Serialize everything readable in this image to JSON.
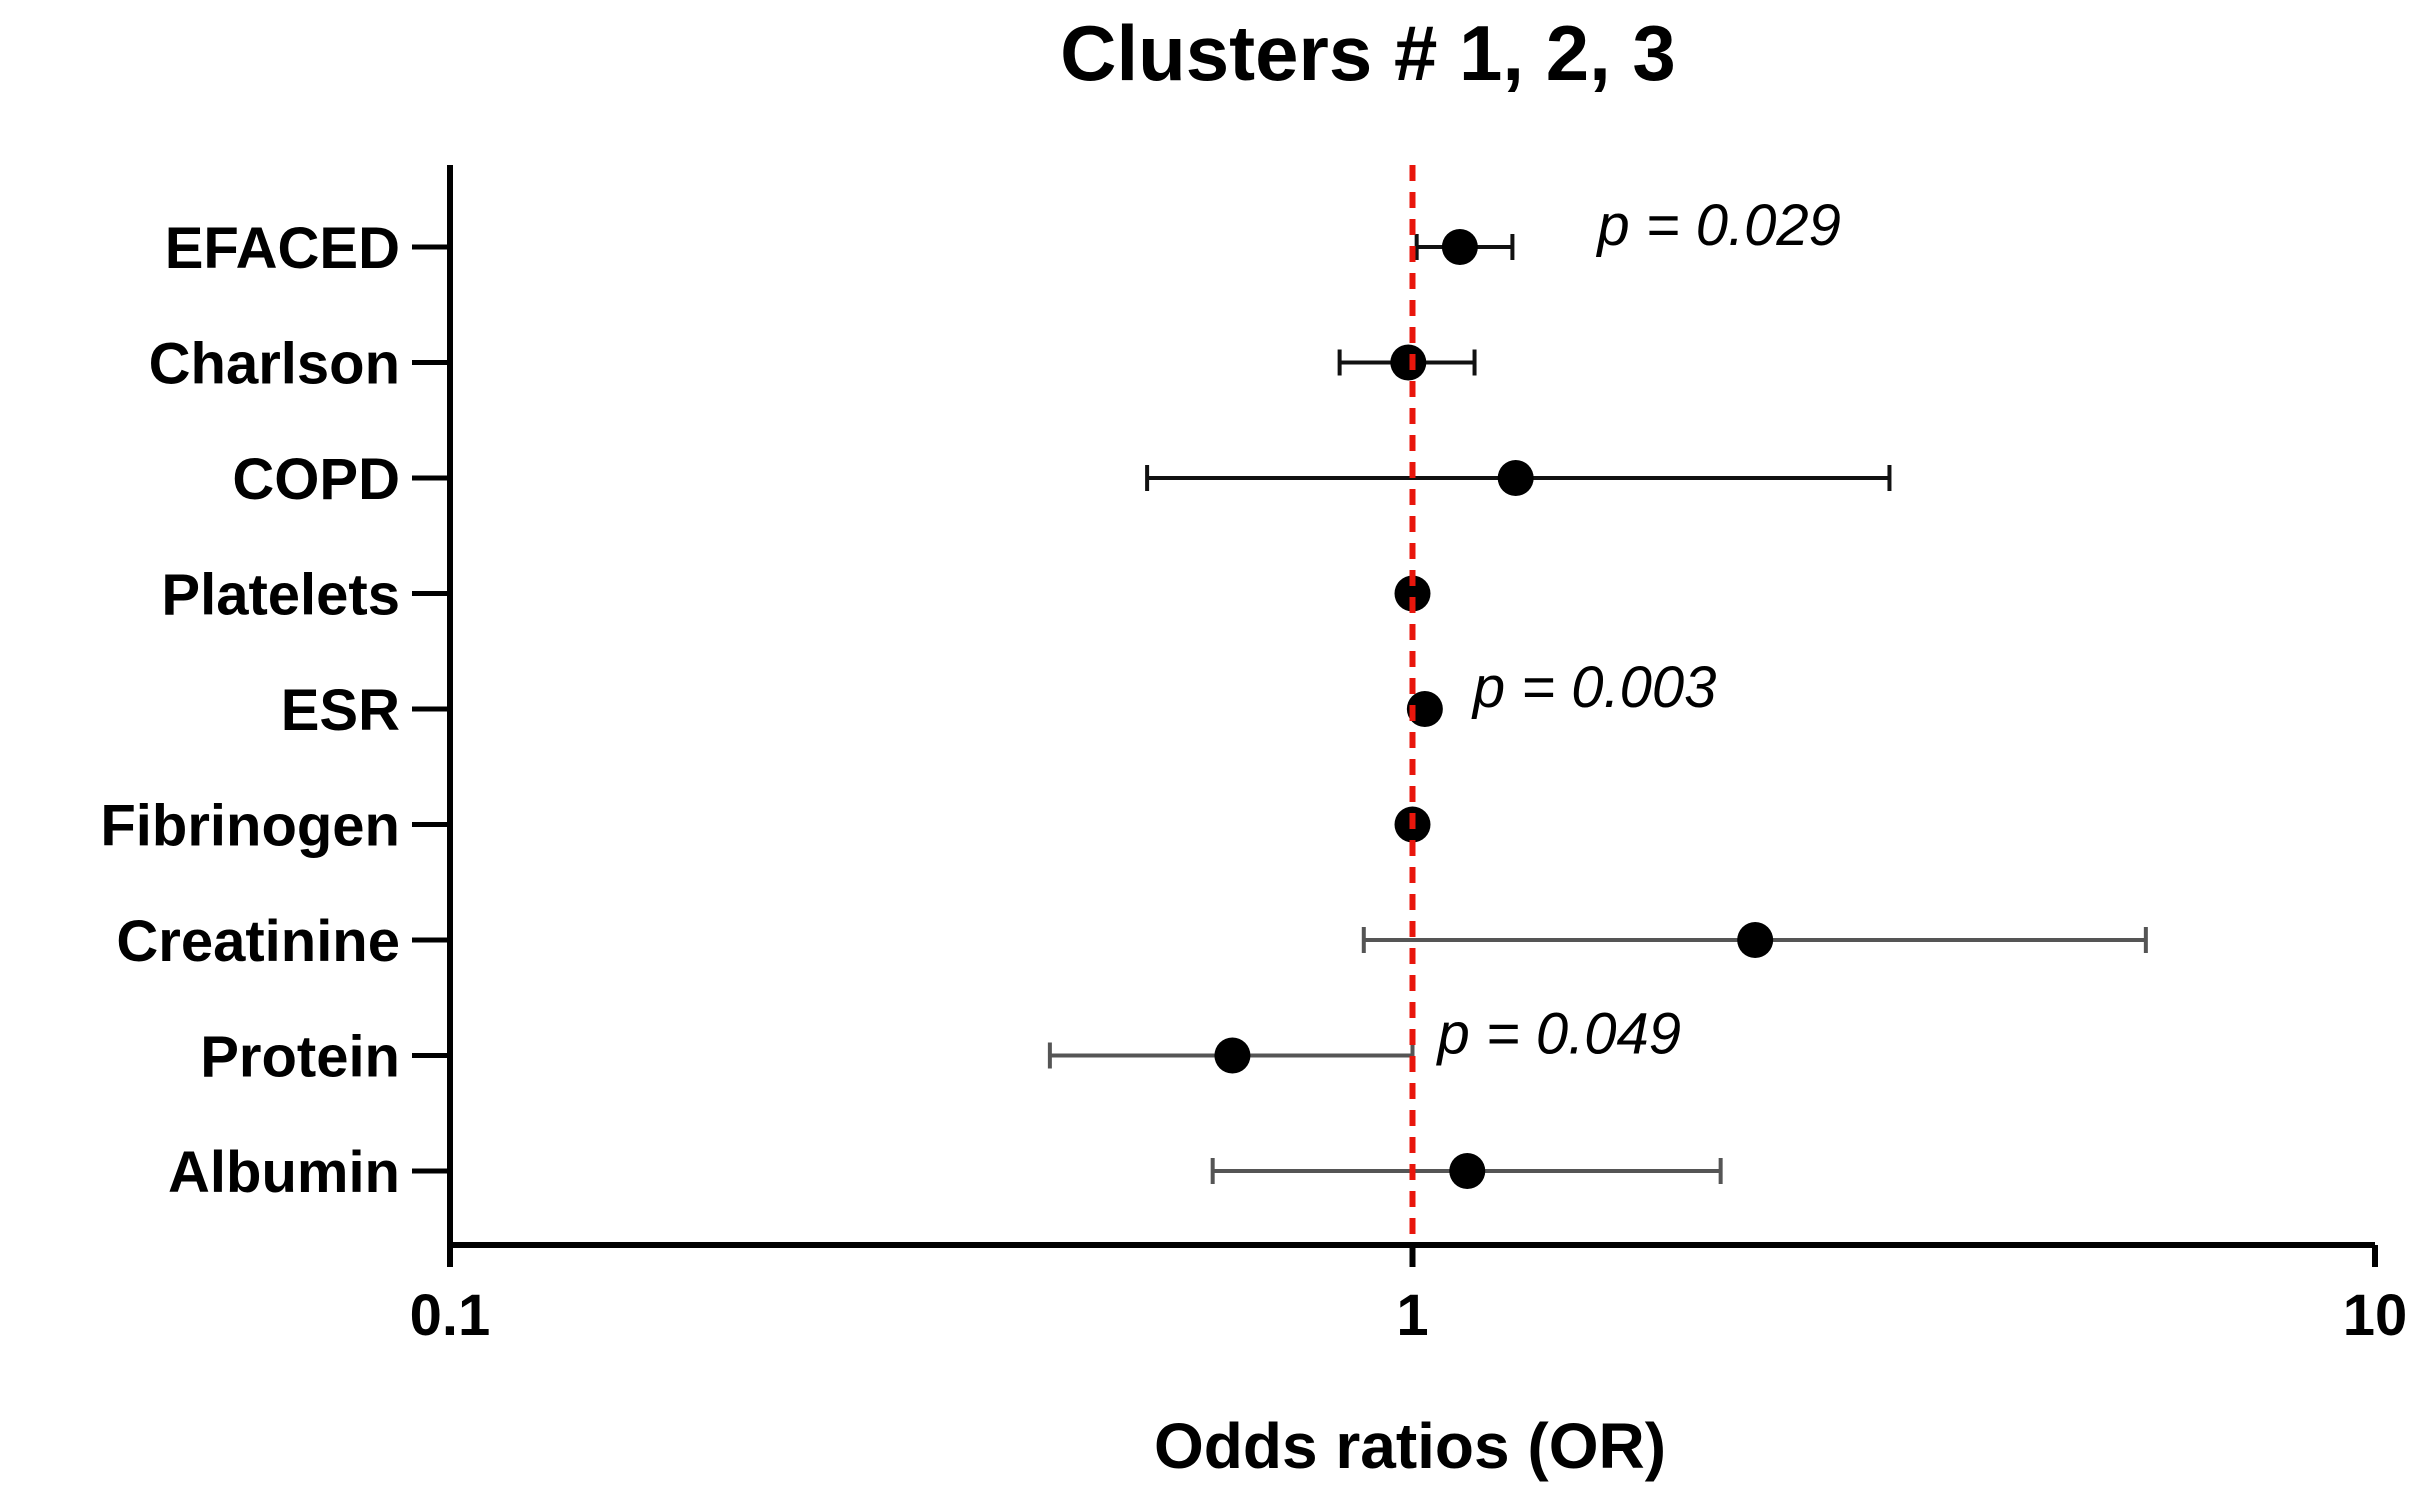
{
  "chart_data": {
    "type": "forest",
    "title": "Clusters # 1, 2, 3",
    "xlabel": "Odds ratios (OR)",
    "ylabel": "",
    "xscale": "log",
    "xlim": [
      0.1,
      10
    ],
    "xticks": [
      {
        "value": 0.1,
        "label": "0.1"
      },
      {
        "value": 1,
        "label": "1"
      },
      {
        "value": 10,
        "label": "10"
      }
    ],
    "reference_line": {
      "value": 1,
      "style": "dashed",
      "color": "#e8160c"
    },
    "rows": [
      {
        "label": "EFACED",
        "or": 1.12,
        "lower": 1.01,
        "upper": 1.27,
        "annotation": "p = 0.029"
      },
      {
        "label": "Charlson",
        "or": 0.99,
        "lower": 0.84,
        "upper": 1.16,
        "annotation": ""
      },
      {
        "label": "COPD",
        "or": 1.28,
        "lower": 0.53,
        "upper": 3.13,
        "annotation": ""
      },
      {
        "label": "Platelets",
        "or": 1.0,
        "lower": 1.0,
        "upper": 1.0,
        "annotation": ""
      },
      {
        "label": "ESR",
        "or": 1.03,
        "lower": 1.01,
        "upper": 1.05,
        "annotation": "p = 0.003"
      },
      {
        "label": "Fibrinogen",
        "or": 1.0,
        "lower": 1.0,
        "upper": 1.0,
        "annotation": ""
      },
      {
        "label": "Creatinine",
        "or": 2.27,
        "lower": 0.89,
        "upper": 5.78,
        "annotation": ""
      },
      {
        "label": "Protein",
        "or": 0.65,
        "lower": 0.42,
        "upper": 1.0,
        "annotation": "p = 0.049"
      },
      {
        "label": "Albumin",
        "or": 1.14,
        "lower": 0.62,
        "upper": 2.09,
        "annotation": ""
      }
    ],
    "colors": {
      "marker": "#000000",
      "errorbar_dark": "#111111",
      "errorbar_grey": "#555555",
      "axis": "#000000"
    }
  }
}
